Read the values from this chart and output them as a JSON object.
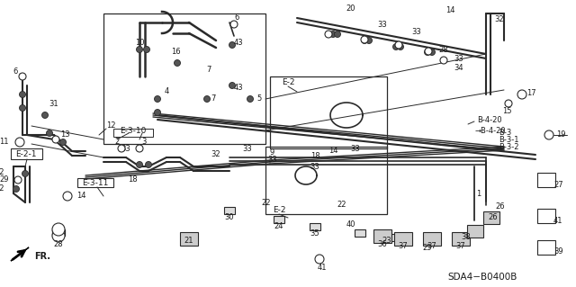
{
  "bg_color": "#ffffff",
  "diagram_code": "SDA4−B0400B",
  "line_color": "#2a2a2a",
  "text_color": "#1a1a1a",
  "figsize": [
    6.4,
    3.19
  ],
  "dpi": 100,
  "labels": {
    "e2_upper": "E-2",
    "e2_lower": "E-2",
    "e21": "E-2-1",
    "e310": "E-3-10",
    "e311": "E-3-11",
    "b420a": "B-4-20",
    "b420b": "→B-4-20",
    "b3": "B-3",
    "b31": "B-3-1",
    "b32": "B-3-2",
    "fr": "FR."
  }
}
